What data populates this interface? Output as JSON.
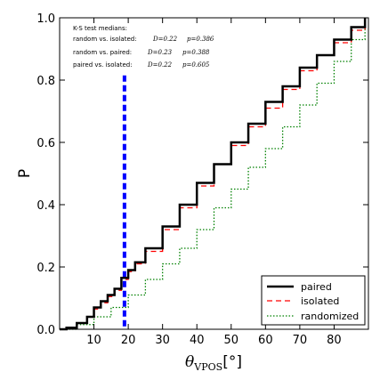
{
  "chart_data": {
    "type": "line",
    "xlabel": "θVPOS[°]",
    "ylabel": "P",
    "xlim": [
      0,
      90
    ],
    "ylim": [
      0.0,
      1.0
    ],
    "xticks": [
      10,
      20,
      30,
      40,
      50,
      60,
      70,
      80
    ],
    "xtick_labels": [
      "10",
      "20",
      "30",
      "40",
      "50",
      "60",
      "70",
      "80"
    ],
    "yticks": [
      0.0,
      0.2,
      0.4,
      0.6,
      0.8,
      1.0
    ],
    "ytick_labels": [
      "0.0",
      "0.2",
      "0.4",
      "0.6",
      "0.8",
      "1.0"
    ],
    "grid": false,
    "legend_position": "bottom-right",
    "annotation": {
      "title": "K-S test medians:",
      "lines": [
        {
          "label": "random vs. isolated:",
          "d": "D=0.22",
          "p": "p=0.386"
        },
        {
          "label": "random vs. paired:",
          "d": "D=0.23",
          "p": "p=0.388"
        },
        {
          "label": "paired vs. isolated:",
          "d": "D=0.22",
          "p": "p=0.605"
        }
      ]
    },
    "vline": {
      "x": 18.9,
      "color": "#0000ff",
      "style": "dashed"
    },
    "series": [
      {
        "name": "paired",
        "color": "#000000",
        "style": "solid",
        "x": [
          0,
          2,
          5,
          8,
          10,
          12,
          14,
          16,
          18,
          20,
          22,
          25,
          30,
          35,
          40,
          45,
          50,
          55,
          60,
          65,
          70,
          75,
          80,
          85,
          89
        ],
        "y": [
          0.0,
          0.005,
          0.02,
          0.04,
          0.07,
          0.09,
          0.11,
          0.13,
          0.165,
          0.19,
          0.215,
          0.26,
          0.33,
          0.4,
          0.47,
          0.53,
          0.6,
          0.66,
          0.73,
          0.78,
          0.84,
          0.88,
          0.93,
          0.97,
          1.0
        ]
      },
      {
        "name": "isolated",
        "color": "#ff0000",
        "style": "dashed",
        "x": [
          0,
          2,
          5,
          8,
          10,
          12,
          14,
          16,
          18,
          20,
          22,
          25,
          30,
          35,
          40,
          45,
          50,
          55,
          60,
          65,
          70,
          75,
          80,
          85,
          89
        ],
        "y": [
          0.0,
          0.005,
          0.02,
          0.04,
          0.065,
          0.085,
          0.105,
          0.125,
          0.16,
          0.185,
          0.21,
          0.25,
          0.32,
          0.39,
          0.46,
          0.53,
          0.59,
          0.65,
          0.71,
          0.77,
          0.83,
          0.88,
          0.92,
          0.96,
          1.0
        ]
      },
      {
        "name": "randomized",
        "color": "#008000",
        "style": "dotted",
        "x": [
          0,
          5,
          10,
          15,
          20,
          25,
          30,
          35,
          40,
          45,
          50,
          55,
          60,
          65,
          70,
          75,
          80,
          85,
          89
        ],
        "y": [
          0.0,
          0.015,
          0.04,
          0.07,
          0.11,
          0.16,
          0.21,
          0.26,
          0.32,
          0.39,
          0.45,
          0.52,
          0.58,
          0.65,
          0.72,
          0.79,
          0.86,
          0.93,
          0.99
        ]
      }
    ]
  }
}
